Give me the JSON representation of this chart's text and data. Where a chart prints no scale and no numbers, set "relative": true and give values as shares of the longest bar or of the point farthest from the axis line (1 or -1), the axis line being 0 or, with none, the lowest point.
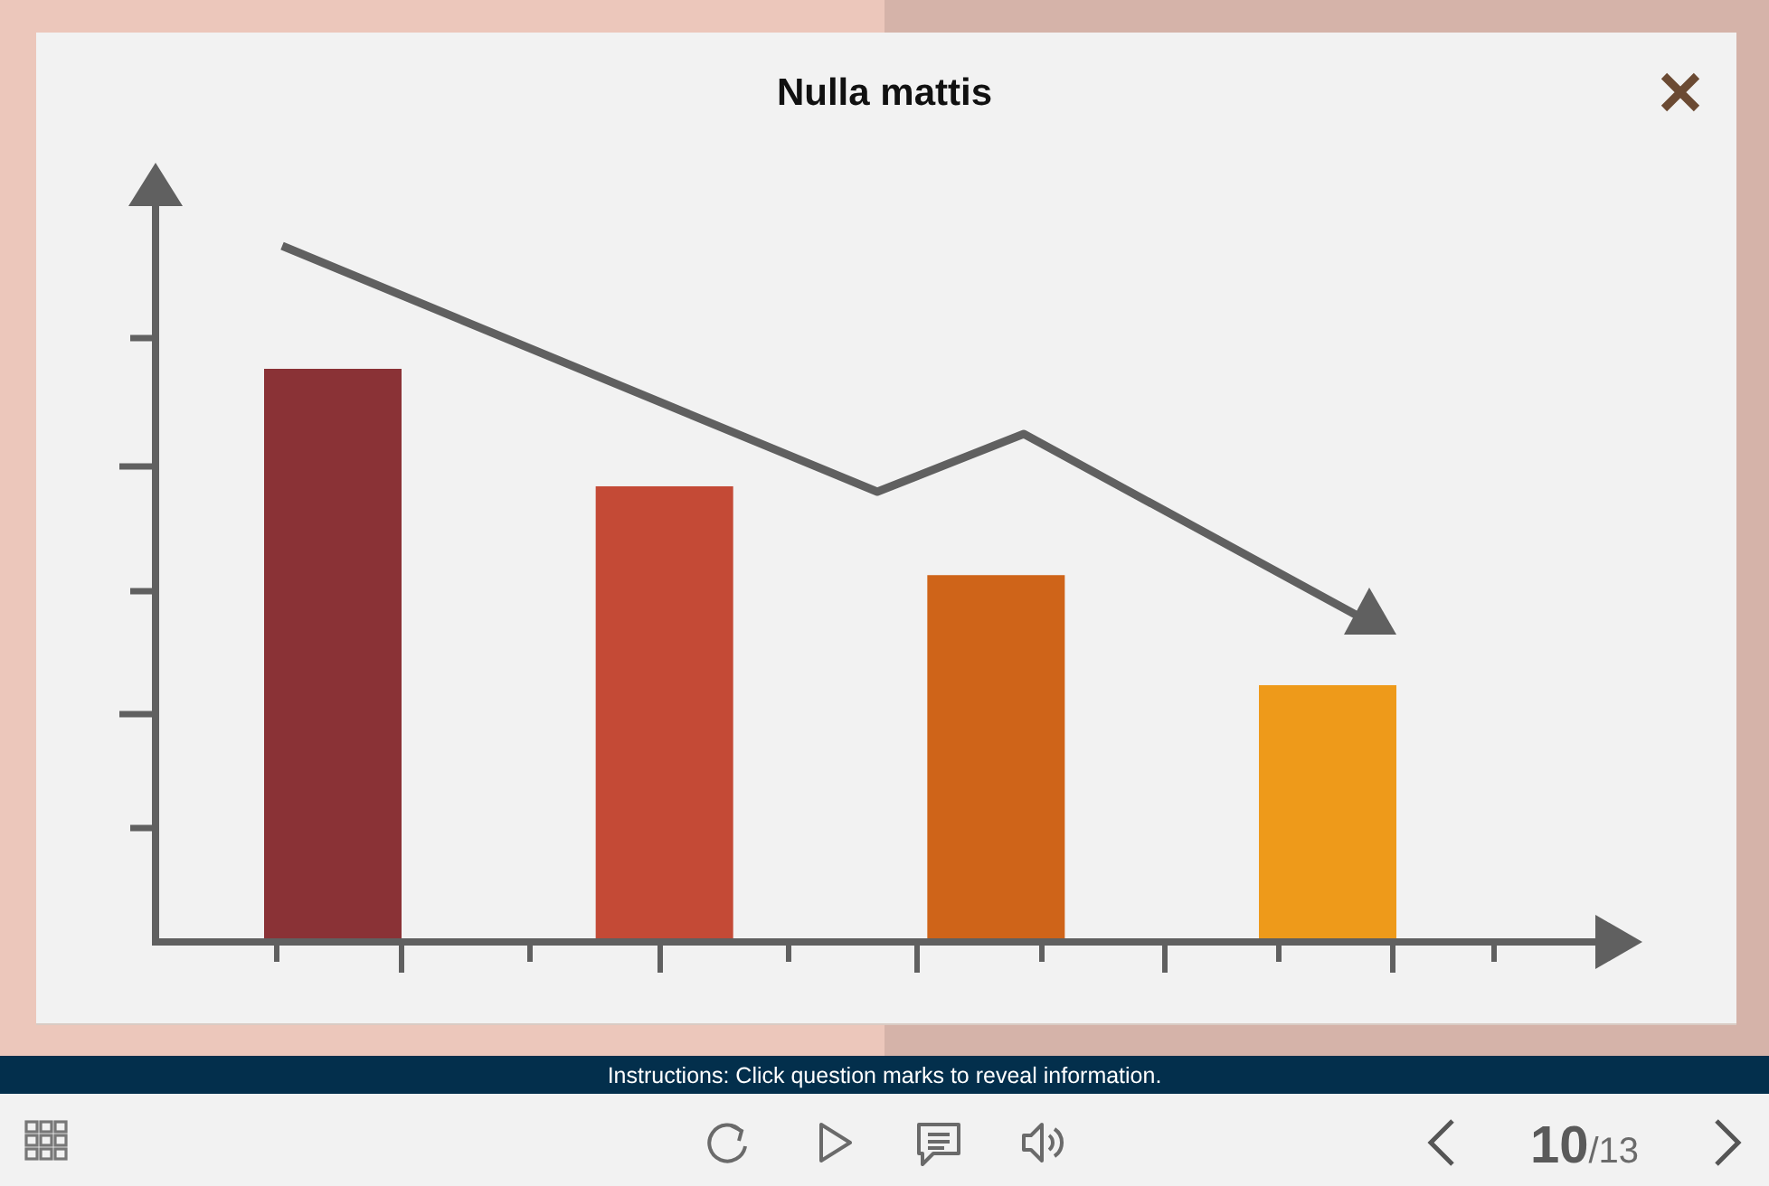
{
  "chart_data": {
    "type": "bar",
    "title": "Nulla mattis",
    "categories": [
      null,
      null,
      null,
      null
    ],
    "values": [
      1,
      0.795,
      0.64,
      0.448
    ],
    "colors": [
      "#8a3236",
      "#c44a36",
      "#cf6419",
      "#ee9a1a"
    ],
    "relative": true,
    "annotations": [
      "Instructions: Click question marks to reveal information.",
      "10/13"
    ]
  }
}
